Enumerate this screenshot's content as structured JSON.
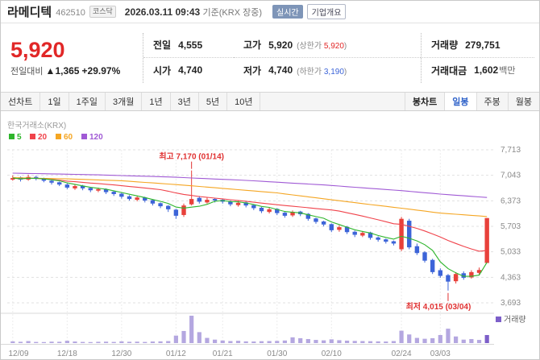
{
  "header": {
    "stock_name": "라메디텍",
    "stock_code": "462510",
    "market_badge": "코스닥",
    "datetime": "2026.03.11 09:43",
    "datetime_suffix": "기준(KRX 장중)",
    "realtime_badge": "실시간",
    "company_overview_badge": "기업개요"
  },
  "price": {
    "current": "5,920",
    "change_label": "전일대비",
    "change_direction": "▲",
    "change_value": "1,365",
    "change_percent": "+29.97%",
    "table": {
      "prev_label": "전일",
      "prev_value": "4,555",
      "open_label": "시가",
      "open_value": "4,740",
      "high_label": "고가",
      "high_value": "5,920",
      "high_limit_label": "상한가",
      "high_limit_value": "5,920",
      "low_label": "저가",
      "low_value": "4,740",
      "low_limit_label": "하한가",
      "low_limit_value": "3,190",
      "volume_label": "거래량",
      "volume_value": "279,751",
      "amount_label": "거래대금",
      "amount_value": "1,602",
      "amount_unit": "백만"
    }
  },
  "tabs": {
    "left": [
      "선차트",
      "1일",
      "1주일",
      "3개월",
      "1년",
      "3년",
      "5년",
      "10년"
    ],
    "right": [
      "봉차트",
      "일봉",
      "주봉",
      "월봉"
    ],
    "active_right": "일봉"
  },
  "chart": {
    "source_label": "한국거래소(KRX)",
    "legend": [
      {
        "label": "5",
        "color": "#2eb52c"
      },
      {
        "label": "20",
        "color": "#f0434b"
      },
      {
        "label": "60",
        "color": "#f5a623"
      },
      {
        "label": "120",
        "color": "#a05ad5"
      }
    ],
    "volume_legend": "거래량",
    "annotations": {
      "high": {
        "text": "최고 7,170 (01/14)",
        "index": 23,
        "value": 7170
      },
      "low": {
        "text": "최저 4,015 (03/04)",
        "index": 56,
        "value": 4015
      }
    },
    "colors": {
      "up": "#e8403a",
      "down": "#3c64d8",
      "volume_bar": "#b4a7e0",
      "volume_last": "#7d5fc9",
      "annotation": "#e03131",
      "grid": "#e1e1e1",
      "vgrid": "#ececec",
      "axis_text": "#8a8a8a",
      "pane_border": "#d8d8d8"
    }
  },
  "chart_data": {
    "type": "candlestick",
    "title": "라메디텍 일봉 차트",
    "ylim": [
      3693,
      7713
    ],
    "y_ticks": [
      7713,
      7043,
      6373,
      5703,
      5033,
      4363,
      3693
    ],
    "x_ticks": [
      {
        "label": "12/09",
        "index": 0
      },
      {
        "label": "12/18",
        "index": 7
      },
      {
        "label": "12/30",
        "index": 14
      },
      {
        "label": "01/12",
        "index": 21
      },
      {
        "label": "01/21",
        "index": 27
      },
      {
        "label": "01/30",
        "index": 34
      },
      {
        "label": "02/10",
        "index": 41
      },
      {
        "label": "02/24",
        "index": 50
      },
      {
        "label": "03/03",
        "index": 55
      }
    ],
    "candles": [
      [
        6930,
        7040,
        6900,
        6970
      ],
      [
        6990,
        7010,
        6880,
        6930
      ],
      [
        6930,
        7060,
        6900,
        7000
      ],
      [
        7000,
        7030,
        6910,
        6950
      ],
      [
        6960,
        6980,
        6860,
        6900
      ],
      [
        6900,
        6930,
        6800,
        6850
      ],
      [
        6860,
        6880,
        6760,
        6800
      ],
      [
        6800,
        6830,
        6680,
        6720
      ],
      [
        6700,
        6800,
        6660,
        6760
      ],
      [
        6770,
        6790,
        6650,
        6700
      ],
      [
        6710,
        6730,
        6600,
        6650
      ],
      [
        6640,
        6720,
        6600,
        6680
      ],
      [
        6680,
        6700,
        6550,
        6600
      ],
      [
        6610,
        6640,
        6500,
        6550
      ],
      [
        6560,
        6580,
        6430,
        6480
      ],
      [
        6490,
        6520,
        6380,
        6420
      ],
      [
        6400,
        6500,
        6360,
        6460
      ],
      [
        6460,
        6480,
        6330,
        6380
      ],
      [
        6390,
        6410,
        6250,
        6300
      ],
      [
        6310,
        6330,
        6180,
        6230
      ],
      [
        6240,
        6260,
        6080,
        6150
      ],
      [
        6140,
        6160,
        5900,
        5980
      ],
      [
        6000,
        6300,
        5950,
        6250
      ],
      [
        6280,
        7170,
        6250,
        6420
      ],
      [
        6450,
        6500,
        6300,
        6350
      ],
      [
        6330,
        6460,
        6300,
        6400
      ],
      [
        6420,
        6450,
        6330,
        6380
      ],
      [
        6400,
        6430,
        6300,
        6350
      ],
      [
        6360,
        6380,
        6230,
        6280
      ],
      [
        6260,
        6370,
        6220,
        6320
      ],
      [
        6330,
        6350,
        6200,
        6250
      ],
      [
        6260,
        6280,
        6130,
        6180
      ],
      [
        6190,
        6210,
        6050,
        6100
      ],
      [
        6080,
        6200,
        6040,
        6150
      ],
      [
        6160,
        6180,
        6000,
        6050
      ],
      [
        6060,
        6080,
        5930,
        5980
      ],
      [
        5990,
        6120,
        5950,
        6080
      ],
      [
        6090,
        6110,
        5970,
        6020
      ],
      [
        6030,
        6050,
        5850,
        5900
      ],
      [
        5910,
        5930,
        5770,
        5820
      ],
      [
        5830,
        5850,
        5700,
        5750
      ],
      [
        5760,
        5780,
        5550,
        5600
      ],
      [
        5610,
        5730,
        5560,
        5680
      ],
      [
        5690,
        5710,
        5500,
        5550
      ],
      [
        5560,
        5590,
        5420,
        5480
      ],
      [
        5460,
        5580,
        5420,
        5530
      ],
      [
        5540,
        5560,
        5350,
        5400
      ],
      [
        5410,
        5440,
        5300,
        5350
      ],
      [
        5360,
        5380,
        5250,
        5300
      ],
      [
        5310,
        5330,
        5200,
        5250
      ],
      [
        5100,
        5950,
        5050,
        5900
      ],
      [
        5850,
        5900,
        5100,
        5150
      ],
      [
        5180,
        5250,
        4950,
        5000
      ],
      [
        5020,
        5050,
        4750,
        4800
      ],
      [
        4820,
        4850,
        4450,
        4500
      ],
      [
        4550,
        4600,
        4350,
        4400
      ],
      [
        4420,
        4450,
        4015,
        4250
      ],
      [
        4260,
        4500,
        4200,
        4450
      ],
      [
        4470,
        4520,
        4300,
        4350
      ],
      [
        4360,
        4550,
        4330,
        4500
      ],
      [
        4480,
        4620,
        4440,
        4555
      ],
      [
        4740,
        5920,
        4740,
        5920
      ]
    ],
    "volumes": [
      60000,
      45000,
      70000,
      40000,
      35000,
      50000,
      45000,
      80000,
      55000,
      40000,
      35000,
      45000,
      50000,
      40000,
      60000,
      45000,
      50000,
      40000,
      55000,
      60000,
      70000,
      260000,
      420000,
      950000,
      380000,
      180000,
      120000,
      90000,
      70000,
      80000,
      60000,
      55000,
      65000,
      70000,
      75000,
      90000,
      200000,
      170000,
      140000,
      110000,
      95000,
      130000,
      100000,
      85000,
      75000,
      70000,
      65000,
      60000,
      55000,
      70000,
      430000,
      300000,
      180000,
      150000,
      170000,
      280000,
      500000,
      230000,
      120000,
      140000,
      110000,
      279751
    ],
    "ma": [
      {
        "period": 5,
        "color": "#2eb52c",
        "source": "computed"
      },
      {
        "period": 20,
        "color": "#f0434b",
        "source": "computed"
      },
      {
        "period": 60,
        "color": "#f5a623",
        "points": [
          [
            0,
            6980
          ],
          [
            7,
            6950
          ],
          [
            14,
            6900
          ],
          [
            21,
            6800
          ],
          [
            27,
            6700
          ],
          [
            34,
            6580
          ],
          [
            41,
            6400
          ],
          [
            47,
            6250
          ],
          [
            50,
            6180
          ],
          [
            55,
            6050
          ],
          [
            61,
            5960
          ]
        ]
      },
      {
        "period": 120,
        "color": "#a05ad5",
        "points": [
          [
            0,
            7100
          ],
          [
            10,
            7060
          ],
          [
            20,
            7000
          ],
          [
            30,
            6910
          ],
          [
            40,
            6790
          ],
          [
            50,
            6640
          ],
          [
            55,
            6550
          ],
          [
            61,
            6460
          ]
        ]
      }
    ]
  }
}
